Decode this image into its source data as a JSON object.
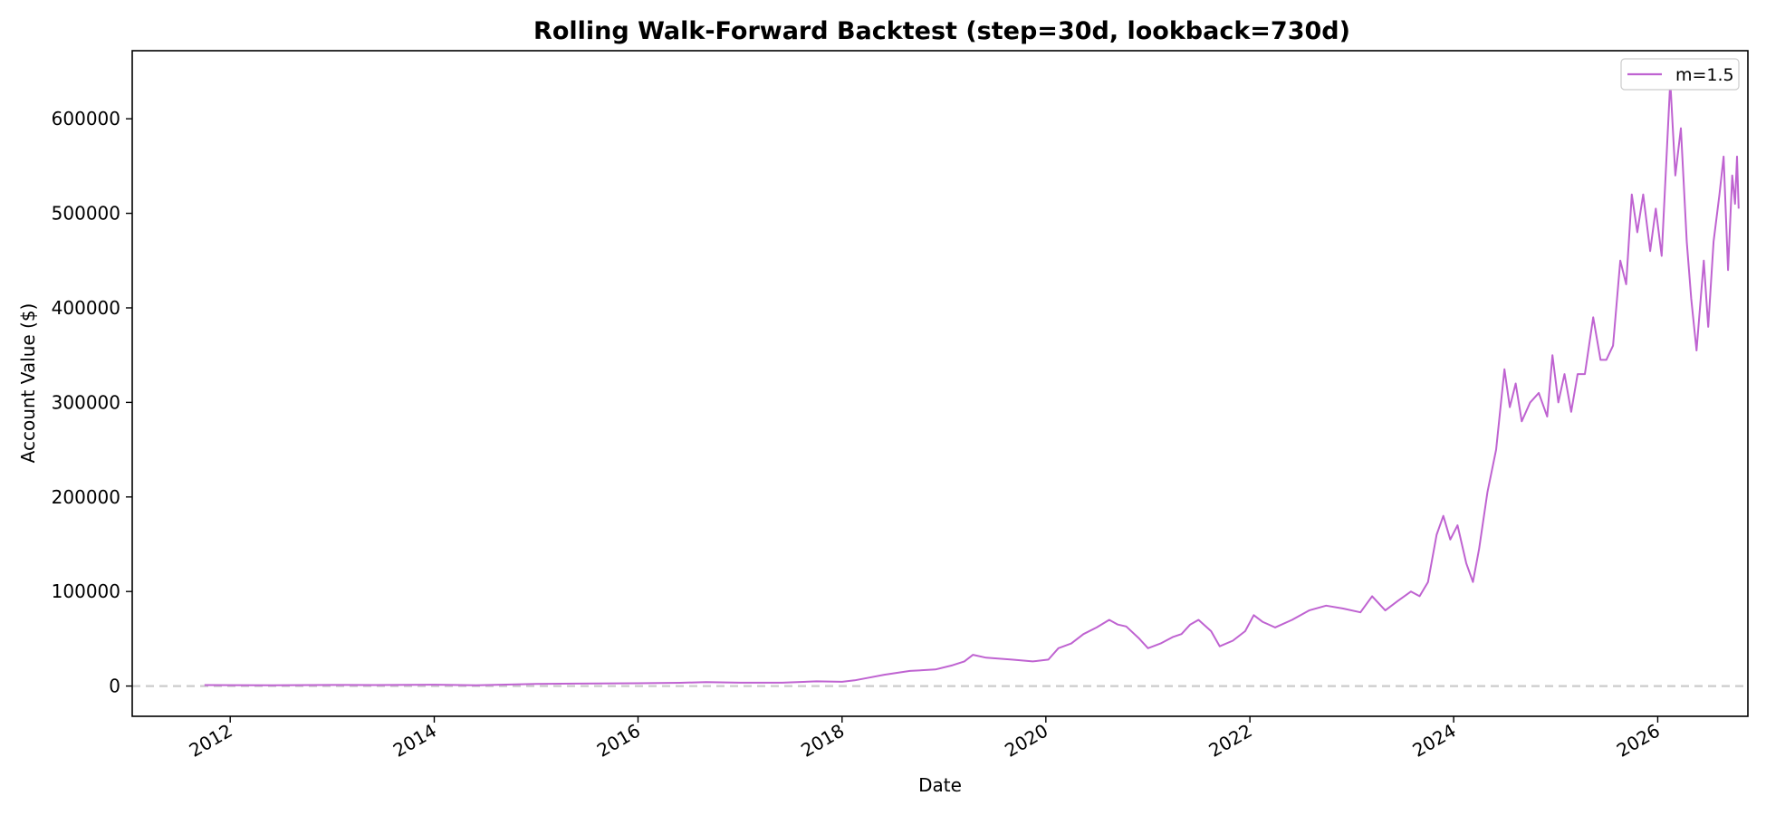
{
  "chart_data": {
    "type": "line",
    "title": "Rolling Walk-Forward Backtest  (step=30d, lookback=730d)",
    "xlabel": "Date",
    "ylabel": "Account Value ($)",
    "x_range": [
      "2011-01-15",
      "2026-11-20"
    ],
    "ylim": [
      -32000,
      672000
    ],
    "x_ticks": [
      "2012",
      "2014",
      "2016",
      "2018",
      "2020",
      "2022",
      "2024",
      "2026"
    ],
    "y_ticks": [
      0,
      100000,
      200000,
      300000,
      400000,
      500000,
      600000
    ],
    "y_tick_labels": [
      "0",
      "100000",
      "200000",
      "300000",
      "400000",
      "500000",
      "600000"
    ],
    "grid": false,
    "legend_position": "top-right",
    "reference_line": {
      "y": 0,
      "style": "dashed",
      "color": "#cccccc"
    },
    "series": [
      {
        "name": "m=1.5",
        "color": "#bf63d1",
        "points": [
          [
            "2011-10-01",
            1000
          ],
          [
            "2012-06-01",
            900
          ],
          [
            "2013-01-01",
            1100
          ],
          [
            "2013-06-01",
            1000
          ],
          [
            "2014-01-01",
            1400
          ],
          [
            "2014-06-01",
            900
          ],
          [
            "2015-01-01",
            2200
          ],
          [
            "2015-06-01",
            2600
          ],
          [
            "2016-01-01",
            3000
          ],
          [
            "2016-06-01",
            3400
          ],
          [
            "2016-09-01",
            4200
          ],
          [
            "2017-01-01",
            3500
          ],
          [
            "2017-06-01",
            3500
          ],
          [
            "2017-10-01",
            5000
          ],
          [
            "2018-01-01",
            4500
          ],
          [
            "2018-02-15",
            6000
          ],
          [
            "2018-04-01",
            8500
          ],
          [
            "2018-06-01",
            12000
          ],
          [
            "2018-09-01",
            16000
          ],
          [
            "2018-12-01",
            17500
          ],
          [
            "2019-02-01",
            22000
          ],
          [
            "2019-03-15",
            26000
          ],
          [
            "2019-04-15",
            33000
          ],
          [
            "2019-06-01",
            30000
          ],
          [
            "2019-09-01",
            28000
          ],
          [
            "2019-11-15",
            26000
          ],
          [
            "2020-01-10",
            28000
          ],
          [
            "2020-02-15",
            40000
          ],
          [
            "2020-04-01",
            45000
          ],
          [
            "2020-05-15",
            55000
          ],
          [
            "2020-07-01",
            62000
          ],
          [
            "2020-08-15",
            70000
          ],
          [
            "2020-09-15",
            65000
          ],
          [
            "2020-10-15",
            63000
          ],
          [
            "2020-12-01",
            50000
          ],
          [
            "2021-01-01",
            40000
          ],
          [
            "2021-02-15",
            45000
          ],
          [
            "2021-04-01",
            52000
          ],
          [
            "2021-05-01",
            55000
          ],
          [
            "2021-06-01",
            65000
          ],
          [
            "2021-07-01",
            70000
          ],
          [
            "2021-08-15",
            58000
          ],
          [
            "2021-09-15",
            42000
          ],
          [
            "2021-11-01",
            48000
          ],
          [
            "2021-12-15",
            58000
          ],
          [
            "2022-01-15",
            75000
          ],
          [
            "2022-02-15",
            68000
          ],
          [
            "2022-04-01",
            62000
          ],
          [
            "2022-06-01",
            70000
          ],
          [
            "2022-08-01",
            80000
          ],
          [
            "2022-10-01",
            85000
          ],
          [
            "2022-12-01",
            82000
          ],
          [
            "2023-02-01",
            78000
          ],
          [
            "2023-03-15",
            95000
          ],
          [
            "2023-05-01",
            80000
          ],
          [
            "2023-06-15",
            90000
          ],
          [
            "2023-08-01",
            100000
          ],
          [
            "2023-09-01",
            95000
          ],
          [
            "2023-10-01",
            110000
          ],
          [
            "2023-11-01",
            160000
          ],
          [
            "2023-11-25",
            180000
          ],
          [
            "2023-12-20",
            155000
          ],
          [
            "2024-01-15",
            170000
          ],
          [
            "2024-02-15",
            130000
          ],
          [
            "2024-03-10",
            110000
          ],
          [
            "2024-04-01",
            145000
          ],
          [
            "2024-05-01",
            205000
          ],
          [
            "2024-06-01",
            250000
          ],
          [
            "2024-07-01",
            335000
          ],
          [
            "2024-07-20",
            295000
          ],
          [
            "2024-08-10",
            320000
          ],
          [
            "2024-09-01",
            280000
          ],
          [
            "2024-10-01",
            300000
          ],
          [
            "2024-11-01",
            310000
          ],
          [
            "2024-12-01",
            285000
          ],
          [
            "2024-12-20",
            350000
          ],
          [
            "2025-01-10",
            300000
          ],
          [
            "2025-02-01",
            330000
          ],
          [
            "2025-02-25",
            290000
          ],
          [
            "2025-03-20",
            330000
          ],
          [
            "2025-04-15",
            330000
          ],
          [
            "2025-05-15",
            390000
          ],
          [
            "2025-06-10",
            345000
          ],
          [
            "2025-07-01",
            345000
          ],
          [
            "2025-07-25",
            360000
          ],
          [
            "2025-08-20",
            450000
          ],
          [
            "2025-09-10",
            425000
          ],
          [
            "2025-09-30",
            520000
          ],
          [
            "2025-10-20",
            480000
          ],
          [
            "2025-11-10",
            520000
          ],
          [
            "2025-12-05",
            460000
          ],
          [
            "2025-12-25",
            505000
          ],
          [
            "2026-01-15",
            455000
          ],
          [
            "2026-02-15",
            640000
          ],
          [
            "2026-03-05",
            540000
          ],
          [
            "2026-03-25",
            590000
          ],
          [
            "2026-04-15",
            470000
          ],
          [
            "2026-05-01",
            410000
          ],
          [
            "2026-05-20",
            355000
          ],
          [
            "2026-06-15",
            450000
          ],
          [
            "2026-07-01",
            380000
          ],
          [
            "2026-07-20",
            470000
          ],
          [
            "2026-08-10",
            520000
          ],
          [
            "2026-08-25",
            560000
          ],
          [
            "2026-09-10",
            440000
          ],
          [
            "2026-09-25",
            540000
          ],
          [
            "2026-10-05",
            510000
          ],
          [
            "2026-10-12",
            560000
          ],
          [
            "2026-10-18",
            505000
          ]
        ]
      }
    ]
  }
}
